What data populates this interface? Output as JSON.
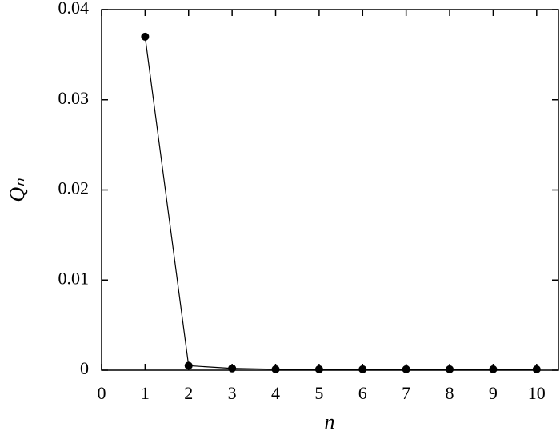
{
  "chart_data": {
    "type": "line",
    "xlabel": "n",
    "ylabel": "Qₙ",
    "x": [
      1,
      2,
      3,
      4,
      5,
      6,
      7,
      8,
      9,
      10
    ],
    "series": [
      {
        "color": "#000000",
        "values": [
          0.037,
          0.0005,
          0.0002,
          0.0001,
          0.0001,
          0.0001,
          0.0001,
          0.0001,
          0.0001,
          0.0001
        ]
      }
    ],
    "xlim": [
      0,
      10.5
    ],
    "ylim": [
      0,
      0.04
    ],
    "xticks": [
      0,
      1,
      2,
      3,
      4,
      5,
      6,
      7,
      8,
      9,
      10
    ],
    "yticks": [
      0,
      0.01,
      0.02,
      0.03,
      0.04
    ],
    "grid": false
  }
}
